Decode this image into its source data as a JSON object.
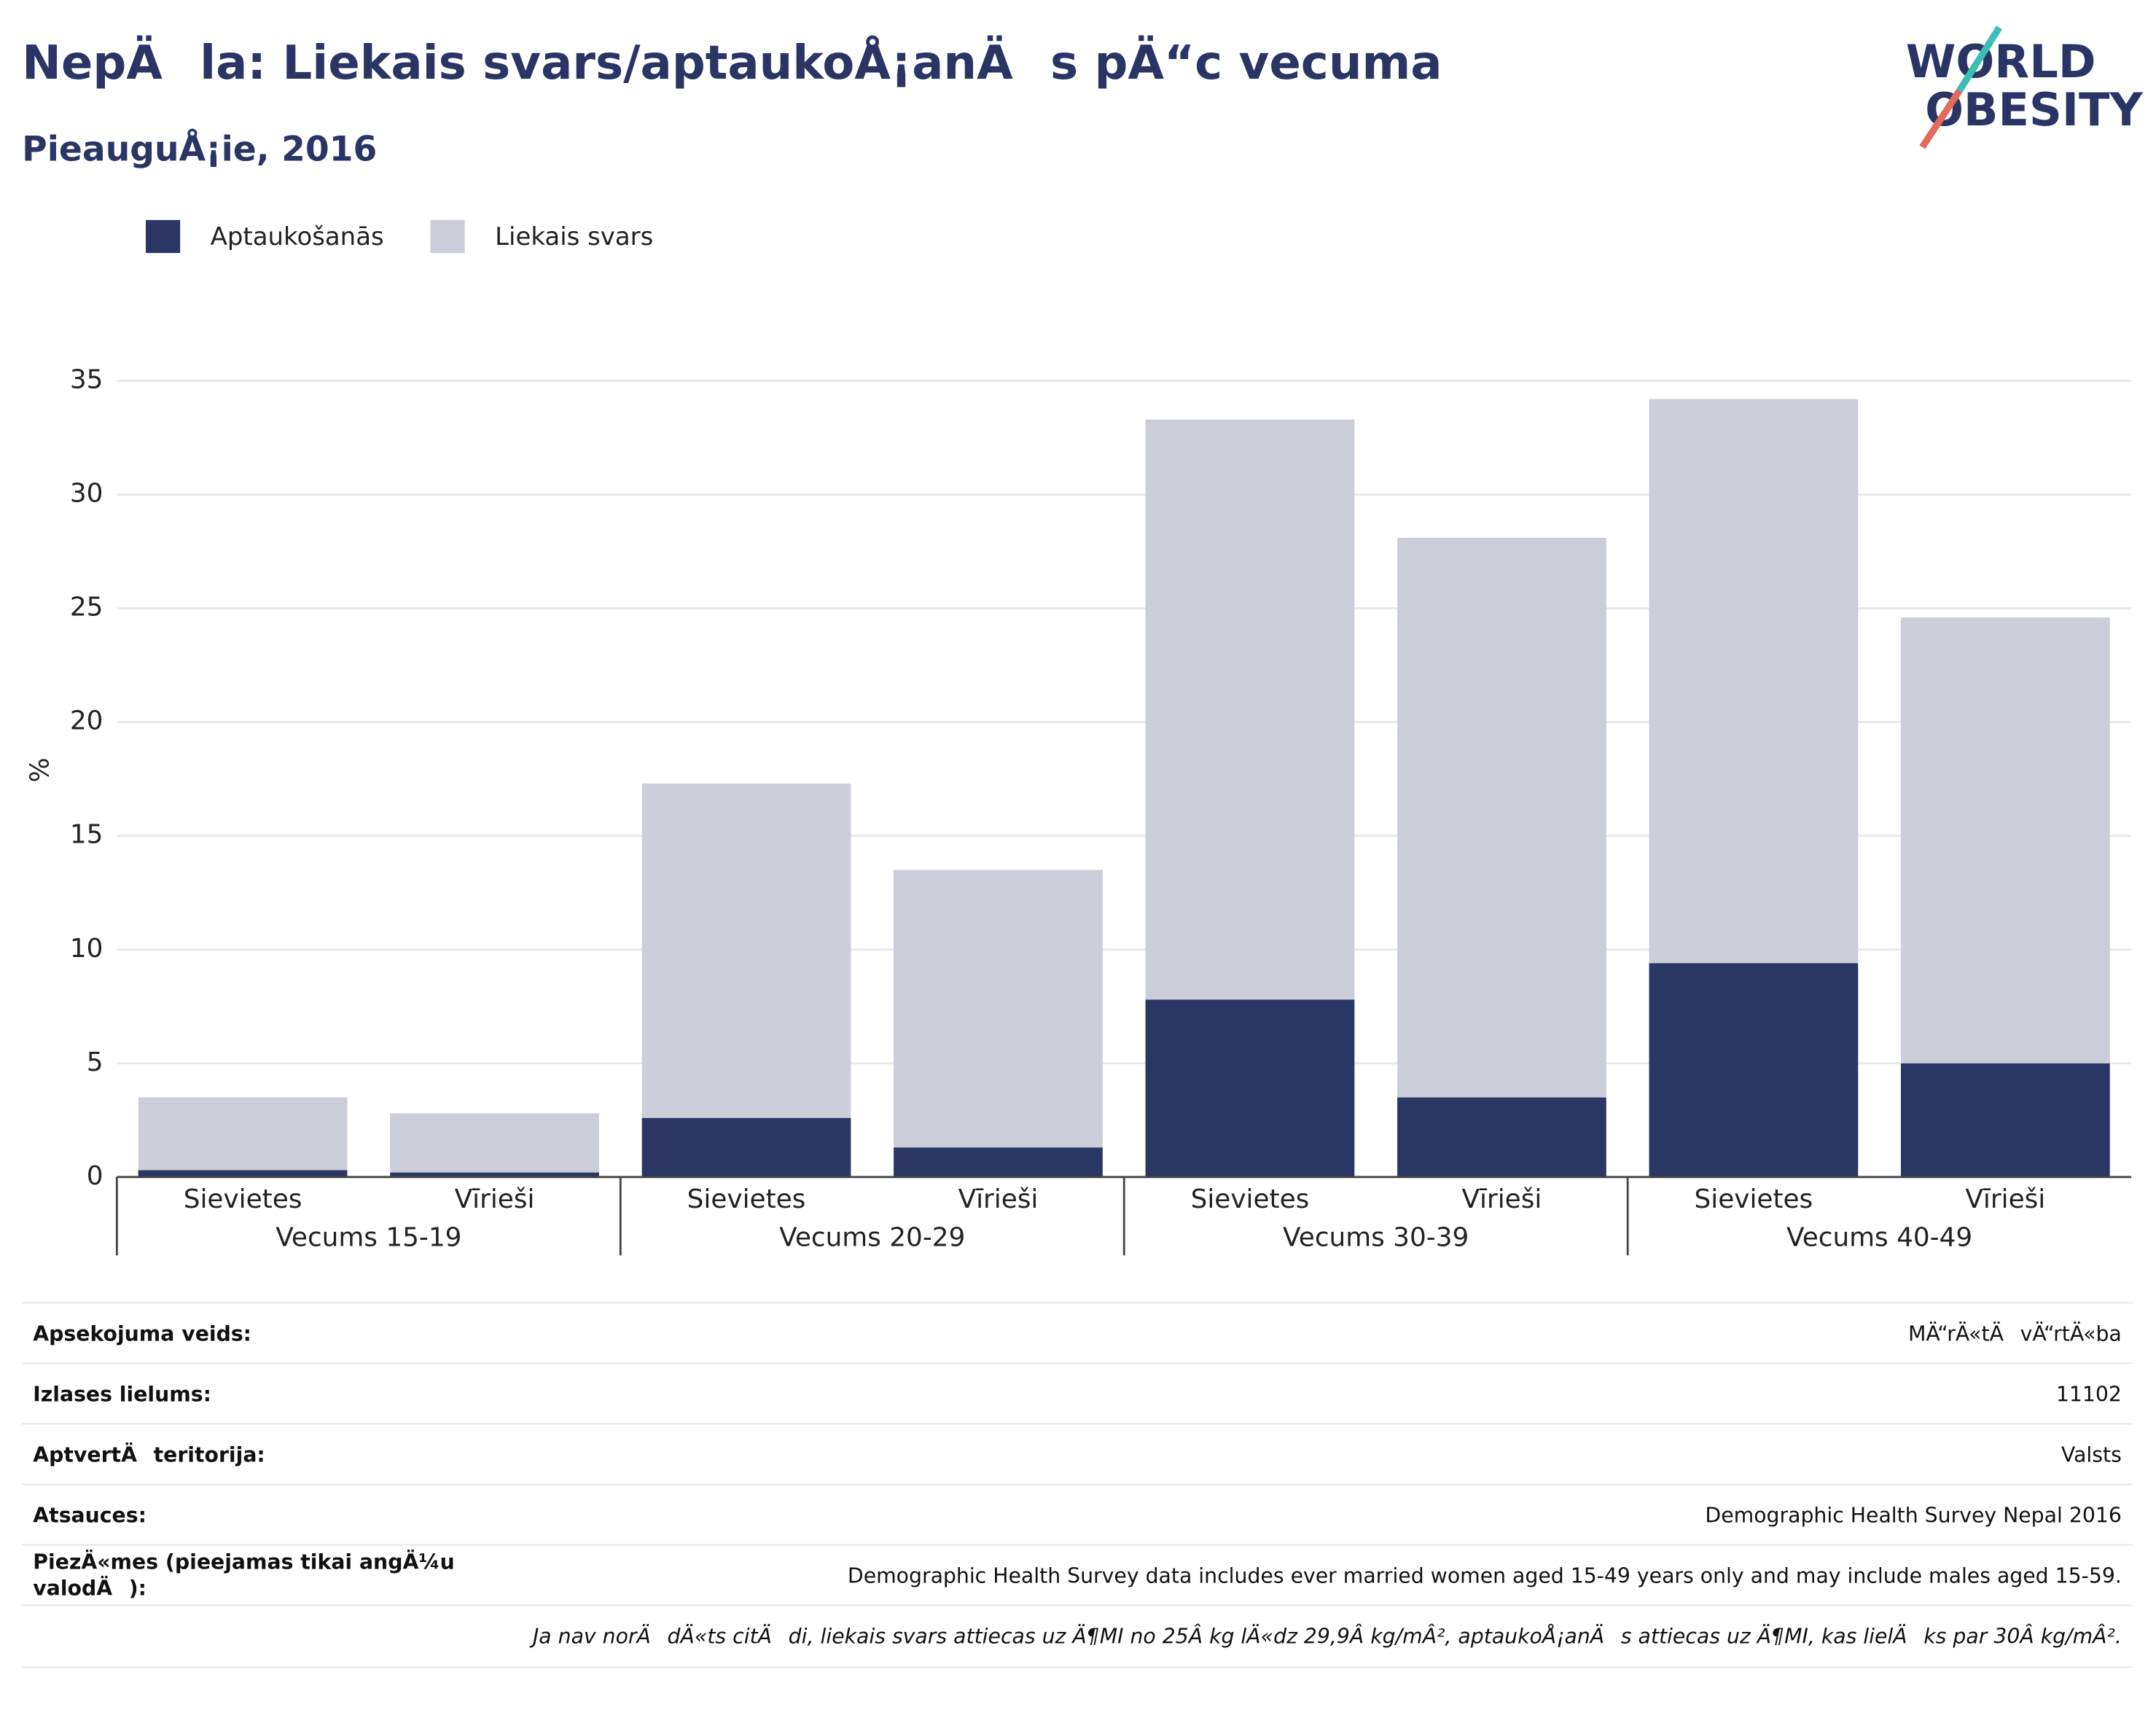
{
  "chart_data": {
    "type": "stacked_bar",
    "title": "NepÄla: Liekais svars/aptaukoÅ¡anÄs pÄ“c vecuma",
    "subtitle": "PieauguÅ¡ie, 2016",
    "y_label": "%",
    "categories": [
      "Sievietes",
      "Vīrieši",
      "Sievietes",
      "Vīrieši",
      "Sievietes",
      "Vīrieši",
      "Sievietes",
      "Vīrieši"
    ],
    "groups": [
      "Vecums 15-19",
      "Vecums 20-29",
      "Vecums 30-39",
      "Vecums 40-49"
    ],
    "series": [
      {
        "name": "Aptaukošanās",
        "color": "#2a3663",
        "values": [
          0.3,
          0.2,
          2.6,
          1.3,
          7.8,
          3.5,
          9.4,
          5.0
        ]
      },
      {
        "name": "Liekais svars",
        "color": "#cbcdd9",
        "values": [
          3.2,
          2.6,
          14.7,
          12.2,
          25.5,
          24.6,
          24.8,
          19.6
        ]
      }
    ],
    "ylim": [
      0,
      35
    ],
    "yticks": [
      0,
      5,
      10,
      15,
      20,
      25,
      30,
      35
    ],
    "grid": true,
    "legend": "top-left"
  },
  "logo": [
    "WORLD",
    "OBESITY"
  ],
  "table": {
    "rows": [
      [
        "Apsekojuma veids:",
        "MÄ“rÄ«tÄvÄ“rtÄ«ba"
      ],
      [
        "Izlases lielums:",
        "11102"
      ],
      [
        "AptvertÄteritorija:",
        "Valsts"
      ],
      [
        "Atsauces:",
        "Demographic Health Survey Nepal 2016"
      ],
      [
        "PiezÄ«mes (pieejamas tikai angÄ¼u valodÄ):",
        "Demographic Health Survey data includes ever married women aged 15-49 years only and may include males aged 15-59."
      ]
    ],
    "footnote": "Ja nav norÄdÄ«ts citÄdi, liekais svars attiecas uz Ä¶MI no 25Â kg lÄ«dz 29,9Â kg/mÂ², aptaukoÅ¡anÄs attiecas uz Ä¶MI, kas lielÄks par 30Â kg/mÂ²."
  }
}
